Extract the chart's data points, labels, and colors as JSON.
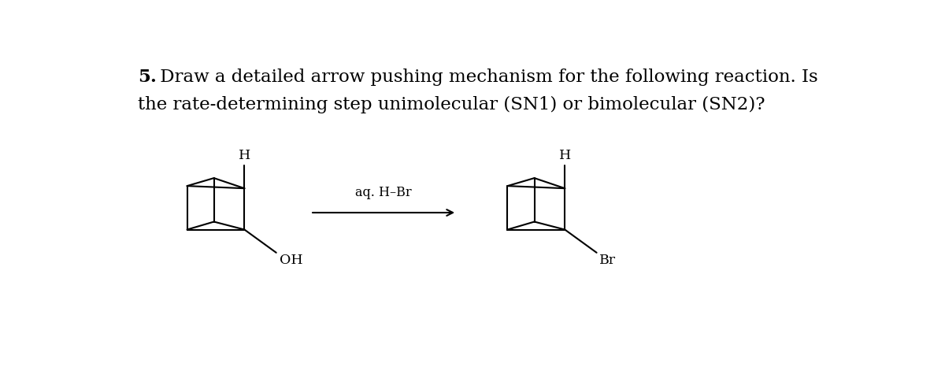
{
  "title_bold": "5.",
  "title_rest_line1": " Draw a detailed arrow pushing mechanism for the following reaction. Is",
  "title_line2": "the rate-determining step unimolecular (SN1) or bimolecular (SN2)?",
  "reagent": "aq. H–Br",
  "label_H_left": "H",
  "label_OH": "OH",
  "label_H_right": "H",
  "label_Br": "Br",
  "bg_color": "#ffffff",
  "text_color": "#000000",
  "line_color": "#000000",
  "title_fontsize": 16.5,
  "label_fontsize": 12.5,
  "reagent_fontsize": 11.5,
  "lw": 1.5
}
